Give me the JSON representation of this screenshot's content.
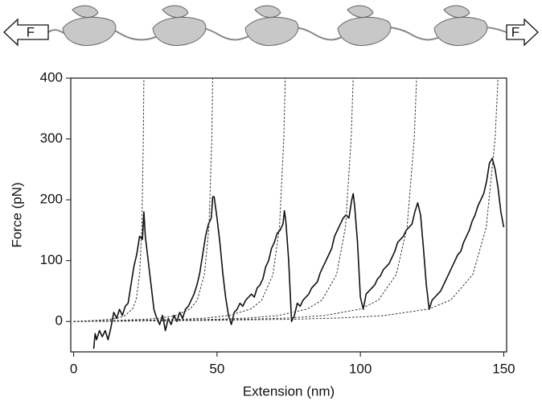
{
  "chart_data": {
    "type": "line",
    "x_label": "Extension (nm)",
    "y_label": "Force (pN)",
    "annotations": [
      "F",
      "F"
    ],
    "xlim": [
      -1,
      151
    ],
    "ylim": [
      -50,
      400
    ],
    "xticks": [
      0,
      50,
      100,
      150
    ],
    "yticks": [
      0,
      100,
      200,
      300,
      400
    ],
    "series": [
      {
        "color": "#111111",
        "linestyle": "solid",
        "x": [
          7,
          7.5,
          8,
          9,
          10,
          11,
          12,
          13,
          14,
          15,
          16,
          17,
          18,
          19,
          20,
          21,
          22,
          23,
          24,
          24.5,
          25,
          26,
          27,
          28,
          29,
          30,
          31,
          32,
          33,
          34,
          35,
          36,
          37,
          38,
          39,
          40,
          41,
          42,
          43,
          44,
          45,
          46,
          47,
          48,
          48.5,
          49,
          50,
          51,
          52,
          53,
          54,
          55,
          56,
          57,
          58,
          59,
          60,
          61,
          62,
          63,
          64,
          65,
          66,
          67,
          68,
          69,
          70,
          71,
          72,
          73,
          73.5,
          74,
          75,
          76,
          77,
          78,
          79,
          80,
          81,
          82,
          83,
          84,
          85,
          86,
          87,
          88,
          89,
          90,
          91,
          92,
          93,
          94,
          95,
          96,
          97,
          97.5,
          98,
          99,
          100,
          101,
          102,
          103,
          104,
          105,
          106,
          107,
          108,
          109,
          110,
          111,
          112,
          113,
          114,
          115,
          116,
          117,
          118,
          119,
          120,
          121,
          122,
          123,
          124,
          125,
          126,
          127,
          128,
          129,
          130,
          131,
          132,
          133,
          134,
          135,
          136,
          137,
          138,
          139,
          140,
          141,
          142,
          143,
          144,
          145,
          146,
          147,
          148,
          149,
          150
        ],
        "values": [
          -45,
          -20,
          -30,
          -15,
          -25,
          -15,
          -30,
          -10,
          15,
          5,
          20,
          10,
          25,
          30,
          60,
          90,
          110,
          140,
          135,
          180,
          140,
          100,
          60,
          20,
          5,
          -5,
          10,
          -15,
          5,
          -5,
          10,
          0,
          15,
          5,
          20,
          25,
          35,
          45,
          60,
          80,
          110,
          140,
          160,
          170,
          205,
          205,
          170,
          130,
          80,
          40,
          10,
          -5,
          15,
          20,
          30,
          25,
          35,
          40,
          45,
          40,
          55,
          60,
          70,
          90,
          100,
          120,
          130,
          145,
          150,
          160,
          182,
          165,
          100,
          0,
          10,
          30,
          25,
          35,
          40,
          45,
          55,
          60,
          65,
          80,
          90,
          100,
          110,
          120,
          140,
          150,
          160,
          170,
          175,
          170,
          200,
          210,
          190,
          130,
          40,
          20,
          45,
          50,
          55,
          60,
          70,
          75,
          85,
          90,
          95,
          105,
          115,
          130,
          135,
          140,
          150,
          155,
          160,
          180,
          195,
          175,
          120,
          60,
          20,
          35,
          40,
          45,
          50,
          60,
          70,
          80,
          90,
          100,
          110,
          115,
          130,
          140,
          150,
          165,
          175,
          190,
          200,
          210,
          230,
          260,
          268,
          250,
          220,
          180,
          155
        ]
      },
      {
        "color": "#333333",
        "linestyle": "dashed",
        "x": [
          0,
          7.7,
          12.8,
          15.4,
          17.9,
          20.5,
          21.8,
          23.0,
          23.8,
          24.3,
          24.5
        ],
        "values": [
          0,
          1.7,
          3.8,
          5.7,
          9.7,
          20.4,
          35.1,
          77,
          155,
          302,
          400
        ]
      },
      {
        "color": "#333333",
        "linestyle": "dashed",
        "x": [
          0,
          15.2,
          25.4,
          30.4,
          35.5,
          40.6,
          43.1,
          45.6,
          47.2,
          48.2,
          48.5
        ],
        "values": [
          0,
          1.7,
          3.8,
          5.7,
          9.7,
          20.4,
          35.1,
          77,
          155,
          302,
          400
        ]
      },
      {
        "color": "#333333",
        "linestyle": "dashed",
        "x": [
          0,
          23.2,
          38.6,
          46.3,
          54.0,
          61.8,
          65.6,
          69.5,
          71.8,
          73.3,
          73.8
        ],
        "values": [
          0,
          1.7,
          3.8,
          5.7,
          9.7,
          20.4,
          35.1,
          77,
          155,
          302,
          400
        ]
      },
      {
        "color": "#333333",
        "linestyle": "dashed",
        "x": [
          0,
          30.6,
          51.0,
          61.1,
          71.3,
          81.5,
          86.6,
          91.7,
          94.8,
          96.8,
          97.5
        ],
        "values": [
          0,
          1.7,
          3.8,
          5.7,
          9.7,
          20.4,
          35.1,
          77,
          155,
          302,
          400
        ]
      },
      {
        "color": "#333333",
        "linestyle": "dashed",
        "x": [
          0,
          37.5,
          62.5,
          75,
          87.5,
          100,
          106.3,
          112.5,
          116.3,
          118.8,
          119.6
        ],
        "values": [
          0,
          1.7,
          3.8,
          5.7,
          9.7,
          20.4,
          35.1,
          77,
          155,
          302,
          400
        ]
      },
      {
        "color": "#333333",
        "linestyle": "dashed",
        "x": [
          0,
          46.4,
          77.4,
          92.8,
          108.3,
          123.8,
          131.5,
          139.2,
          143.9,
          147.0,
          148.0
        ],
        "values": [
          0,
          1.7,
          3.8,
          5.7,
          9.7,
          20.4,
          35.1,
          77,
          155,
          302,
          400
        ]
      }
    ]
  }
}
